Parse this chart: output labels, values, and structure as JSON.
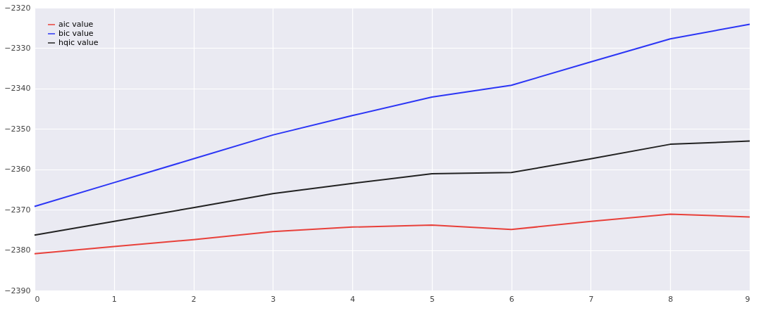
{
  "chart_data": {
    "type": "line",
    "x": [
      0,
      1,
      2,
      3,
      4,
      5,
      6,
      7,
      8,
      9
    ],
    "series": [
      {
        "name": "aic value",
        "color": "#e8403a",
        "values": [
          -2380.9,
          -2379.1,
          -2377.4,
          -2375.4,
          -2374.3,
          -2373.8,
          -2374.9,
          -2372.9,
          -2371.1,
          -2371.8
        ]
      },
      {
        "name": "bic value",
        "color": "#2b35f5",
        "values": [
          -2369.2,
          -2363.3,
          -2357.4,
          -2351.5,
          -2346.7,
          -2342.1,
          -2339.2,
          -2333.4,
          -2327.7,
          -2324.1
        ]
      },
      {
        "name": "hqic value",
        "color": "#222222",
        "values": [
          -2376.3,
          -2372.9,
          -2369.5,
          -2366.0,
          -2363.5,
          -2361.1,
          -2360.8,
          -2357.4,
          -2353.8,
          -2353.0
        ]
      }
    ],
    "xlim": [
      0,
      9
    ],
    "xticks": [
      0,
      1,
      2,
      3,
      4,
      5,
      6,
      7,
      8,
      9
    ],
    "ylim": [
      -2390,
      -2320
    ],
    "yticks": [
      -2390,
      -2380,
      -2370,
      -2360,
      -2350,
      -2340,
      -2330,
      -2320
    ],
    "grid": true,
    "legend": "top left",
    "line_style": "solid",
    "marker": "none"
  }
}
